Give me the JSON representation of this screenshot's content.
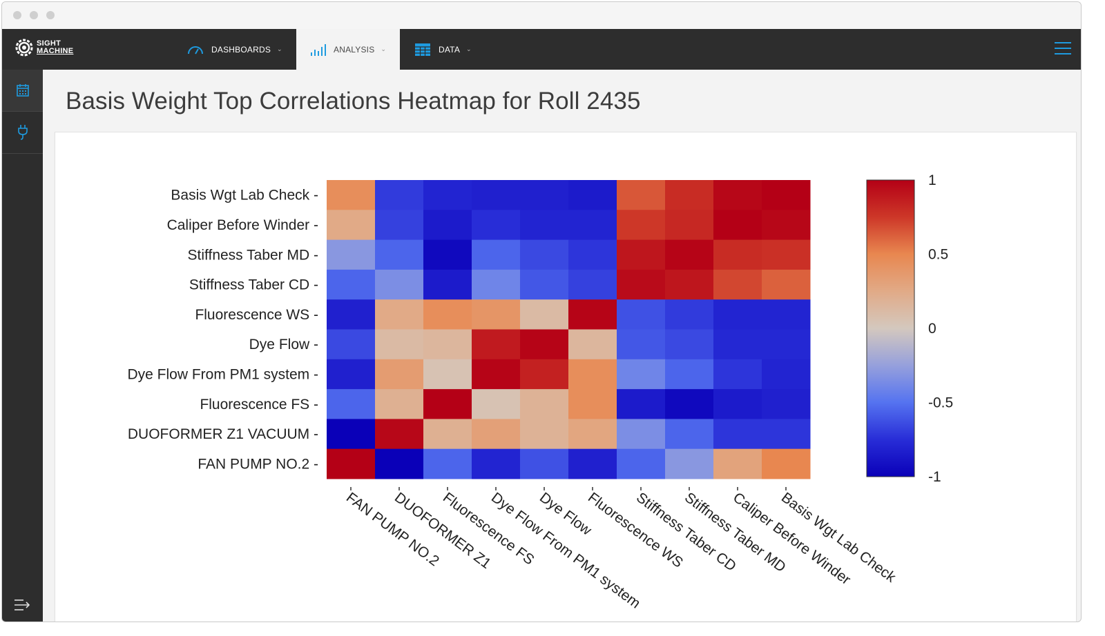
{
  "app": {
    "logo_line1": "SIGHT",
    "logo_line2": "MACHINE"
  },
  "nav": {
    "items": [
      {
        "label": "DASHBOARDS",
        "icon": "speedometer-icon",
        "active": false
      },
      {
        "label": "ANALYSIS",
        "icon": "bar-chart-icon",
        "active": true
      },
      {
        "label": "DATA",
        "icon": "table-grid-icon",
        "active": false
      }
    ],
    "menu_icon": "hamburger-menu-icon"
  },
  "sidebar": {
    "items": [
      {
        "icon": "calendar-icon"
      },
      {
        "icon": "plug-icon"
      }
    ],
    "bottom_icon": "expand-menu-icon"
  },
  "page": {
    "title": "Basis Weight Top Correlations Heatmap for Roll 2435"
  },
  "colors": {
    "accent": "#1e9be0",
    "navbar": "#2d2d2d",
    "scale_low": "#0a00b8",
    "scale_mid": "#d5c9bd",
    "scale_high": "#b40016"
  },
  "chart_data": {
    "type": "heatmap",
    "title": "",
    "xlabel": "",
    "ylabel": "",
    "y_categories": [
      "Basis Wgt Lab Check",
      "Caliper Before Winder",
      "Stiffness Taber MD",
      "Stiffness Taber CD",
      "Fluorescence WS",
      "Dye Flow",
      "Dye Flow From PM1 system",
      "Fluorescence FS",
      "DUOFORMER Z1 VACUUM",
      "FAN PUMP NO.2"
    ],
    "x_categories": [
      "FAN PUMP NO.2",
      "DUOFORMER Z1",
      "Fluorescence FS",
      "Dye Flow From PM1 system",
      "Dye Flow",
      "Fluorescence WS",
      "Stiffness Taber CD",
      "Stiffness Taber MD",
      "Caliper Before Winder",
      "Basis Wgt Lab Check"
    ],
    "values": [
      [
        0.45,
        -0.7,
        -0.8,
        -0.82,
        -0.82,
        -0.85,
        0.65,
        0.8,
        0.97,
        1.0
      ],
      [
        0.25,
        -0.68,
        -0.85,
        -0.75,
        -0.8,
        -0.8,
        0.75,
        0.82,
        1.0,
        0.97
      ],
      [
        -0.3,
        -0.55,
        -0.95,
        -0.55,
        -0.65,
        -0.72,
        0.9,
        0.98,
        0.8,
        0.78
      ],
      [
        -0.55,
        -0.35,
        -0.85,
        -0.4,
        -0.6,
        -0.68,
        0.95,
        0.9,
        0.7,
        0.62
      ],
      [
        -0.82,
        0.25,
        0.45,
        0.4,
        0.12,
        0.98,
        -0.62,
        -0.7,
        -0.8,
        -0.8
      ],
      [
        -0.65,
        0.12,
        0.15,
        0.88,
        0.98,
        0.15,
        -0.6,
        -0.65,
        -0.78,
        -0.78
      ],
      [
        -0.82,
        0.35,
        0.05,
        0.98,
        0.85,
        0.45,
        -0.4,
        -0.55,
        -0.72,
        -0.8
      ],
      [
        -0.55,
        0.2,
        1.0,
        0.05,
        0.18,
        0.45,
        -0.85,
        -0.95,
        -0.85,
        -0.82
      ],
      [
        -1.0,
        0.97,
        0.2,
        0.32,
        0.18,
        0.28,
        -0.35,
        -0.55,
        -0.72,
        -0.72
      ],
      [
        1.0,
        -1.0,
        -0.55,
        -0.8,
        -0.62,
        -0.82,
        -0.55,
        -0.3,
        0.3,
        0.5
      ]
    ],
    "colorbar": {
      "min": -1,
      "max": 1,
      "ticks": [
        {
          "value": 1,
          "label": "1"
        },
        {
          "value": 0.5,
          "label": "0.5"
        },
        {
          "value": 0,
          "label": "0"
        },
        {
          "value": -0.5,
          "label": "-0.5"
        },
        {
          "value": -1,
          "label": "-1"
        }
      ]
    },
    "grid": false,
    "legend_placement": "right"
  }
}
